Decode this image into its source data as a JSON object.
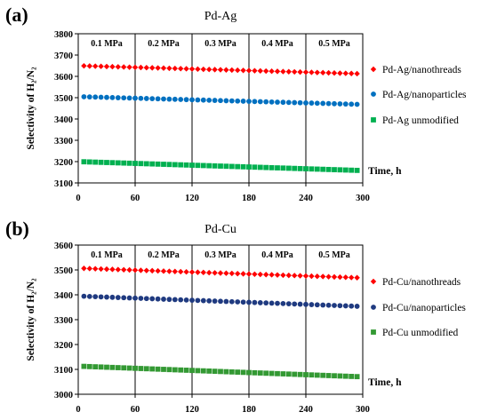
{
  "chart_data": [
    {
      "type": "scatter",
      "panel_label": "(a)",
      "title": "Pd-Ag",
      "ylabel": "Selectivity of H₂/N₂",
      "xlabel": "Time, h",
      "xlim": [
        0,
        300
      ],
      "ylim": [
        3100,
        3800
      ],
      "xticks": [
        "0",
        "60",
        "120",
        "180",
        "240",
        "300"
      ],
      "yticks": [
        "3100",
        "3200",
        "3300",
        "3400",
        "3500",
        "3600",
        "3700",
        "3800"
      ],
      "segments": [
        "0.1 MPa",
        "0.2 MPa",
        "0.3 MPa",
        "0.4 MPa",
        "0.5 MPa"
      ],
      "segment_boundaries": [
        60,
        120,
        180,
        240
      ],
      "legend_position": "right",
      "series": [
        {
          "name": "Pd-Ag/nanothreads",
          "color": "#ff0000",
          "marker": "diamond",
          "start": 3650,
          "end": 3612
        },
        {
          "name": "Pd-Ag/nanoparticles",
          "color": "#0070c0",
          "marker": "circle",
          "start": 3505,
          "end": 3468
        },
        {
          "name": "Pd-Ag unmodified",
          "color": "#00b050",
          "marker": "square",
          "start": 3200,
          "end": 3158
        }
      ]
    },
    {
      "type": "scatter",
      "panel_label": "(b)",
      "title": "Pd-Cu",
      "ylabel": "Selectivity of H₂/N₂",
      "xlabel": "Time, h",
      "xlim": [
        0,
        300
      ],
      "ylim": [
        3000,
        3600
      ],
      "xticks": [
        "0",
        "60",
        "120",
        "180",
        "240",
        "300"
      ],
      "yticks": [
        "3000",
        "3100",
        "3200",
        "3300",
        "3400",
        "3500",
        "3600"
      ],
      "segments": [
        "0.1 MPa",
        "0.2 MPa",
        "0.3 MPa",
        "0.4 MPa",
        "0.5 MPa"
      ],
      "segment_boundaries": [
        60,
        120,
        180,
        240
      ],
      "legend_position": "right",
      "series": [
        {
          "name": "Pd-Cu/nanothreads",
          "color": "#ff0000",
          "marker": "diamond",
          "start": 3507,
          "end": 3468
        },
        {
          "name": "Pd-Cu/nanoparticles",
          "color": "#1f3a80",
          "marker": "circle",
          "start": 3395,
          "end": 3353
        },
        {
          "name": "Pd-Cu unmodified",
          "color": "#339933",
          "marker": "square",
          "start": 3113,
          "end": 3070
        }
      ]
    }
  ]
}
